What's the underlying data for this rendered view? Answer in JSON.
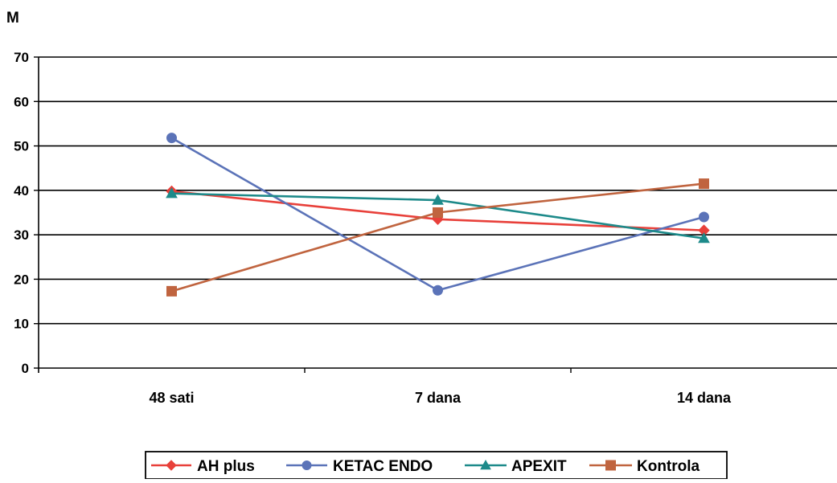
{
  "chart_data": {
    "type": "line",
    "title": "",
    "xlabel": "",
    "ylabel": "M",
    "categories": [
      "48 sati",
      "7 dana",
      "14 dana"
    ],
    "ylim": [
      0,
      70
    ],
    "yticks": [
      0,
      10,
      20,
      30,
      40,
      50,
      60,
      70
    ],
    "grid": true,
    "legend": "bottom",
    "series": [
      {
        "name": "AH plus",
        "values": [
          39.8,
          33.5,
          31.0
        ],
        "color": "#e8403a",
        "marker": "diamond"
      },
      {
        "name": "KETAC ENDO",
        "values": [
          51.8,
          17.5,
          34.0
        ],
        "color": "#5b73b8",
        "marker": "circle"
      },
      {
        "name": "APEXIT",
        "values": [
          39.3,
          37.8,
          29.2
        ],
        "color": "#1d8a8a",
        "marker": "triangle"
      },
      {
        "name": "Kontrola",
        "values": [
          17.3,
          35.0,
          41.5
        ],
        "color": "#c0643f",
        "marker": "square"
      }
    ]
  }
}
